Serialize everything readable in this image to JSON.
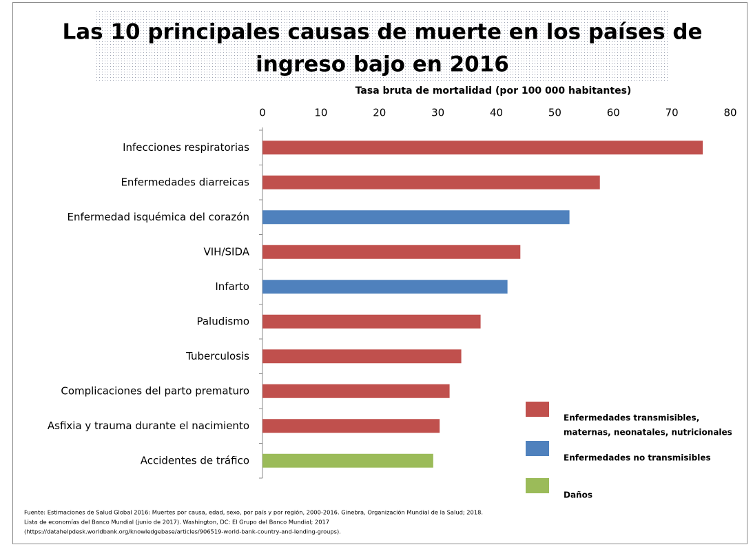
{
  "chart_data": {
    "type": "bar",
    "orientation": "horizontal",
    "title": [
      "Las 10 principales causas de muerte en los países de",
      "ingreso bajo en 2016"
    ],
    "x_label": "Tasa  bruta de mortalidad  (por 100 000 habitantes)",
    "categories": [
      "Infecciones respiratorias",
      "Enfermedades diarreicas",
      "Enfermedad isquémica del corazón",
      "VIH/SIDA",
      "Infarto",
      "Paludismo",
      "Tuberculosis",
      "Complicaciones del parto prematuro",
      "Asfixia y trauma durante el nacimiento",
      "Accidentes de tráfico"
    ],
    "values": [
      75.3,
      57.7,
      52.5,
      44.1,
      41.9,
      37.3,
      34.0,
      32.0,
      30.3,
      29.2
    ],
    "colors": [
      "#c0504d",
      "#c0504d",
      "#4f81bd",
      "#c0504d",
      "#4f81bd",
      "#c0504d",
      "#c0504d",
      "#c0504d",
      "#c0504d",
      "#9bbb59"
    ],
    "xlim": [
      0,
      80
    ],
    "xticks": [
      0,
      10,
      20,
      30,
      40,
      50,
      60,
      70,
      80
    ],
    "legend": [
      {
        "name": [
          "Enfermedades transmisibles,",
          "maternas, neonatales, nutricionales"
        ],
        "color": "#c0504d"
      },
      {
        "name": [
          "Enfermedades no transmisibles"
        ],
        "color": "#4f81bd"
      },
      {
        "name": [
          "Daños"
        ],
        "color": "#9bbb59"
      }
    ],
    "source": [
      "Fuente: Estimaciones de Salud Global 2016: Muertes por causa, edad, sexo, por país y por región, 2000-2016. Ginebra, Organización Mundial de la Salud; 2018.",
      "Lista de economías del Banco Mundial (junio de 2017). Washington, DC: El Grupo del Banco Mundial; 2017",
      "(https://datahelpdesk.worldbank.org/knowledgebase/articles/906519-world-bank-country-and-lending-groups)."
    ]
  }
}
